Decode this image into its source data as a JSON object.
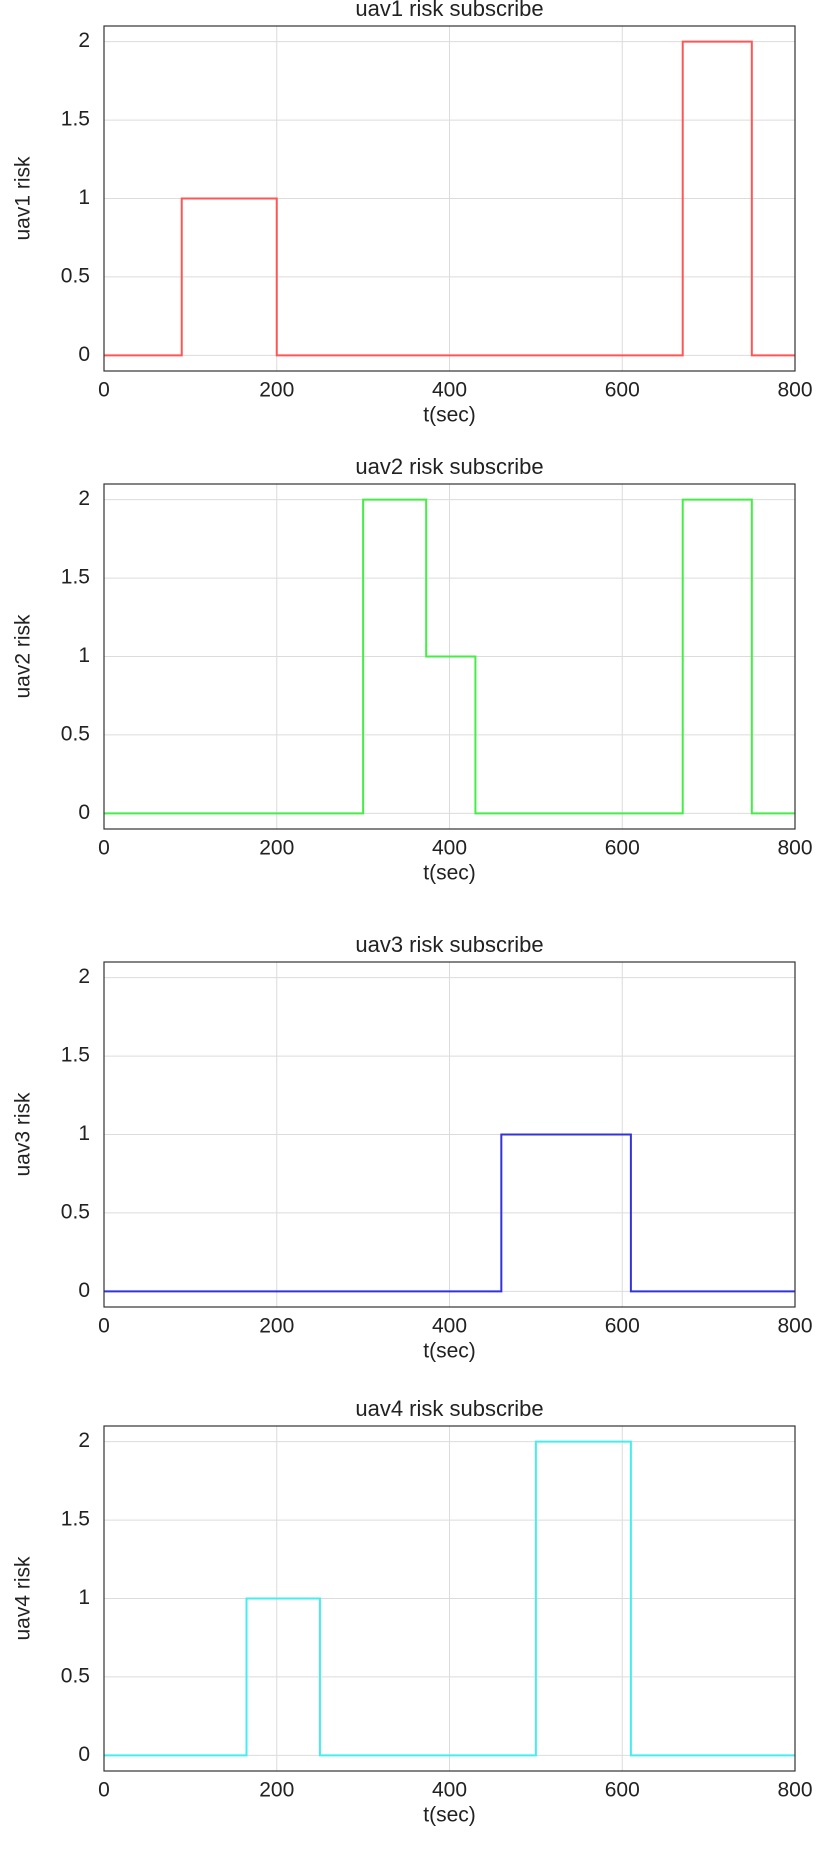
{
  "chart_data": [
    {
      "type": "line",
      "title": "uav1 risk subscribe",
      "xlabel": "t(sec)",
      "ylabel": "uav1 risk",
      "x": [
        0,
        90,
        90,
        200,
        200,
        670,
        670,
        750,
        750,
        800
      ],
      "values": [
        0,
        0,
        1,
        1,
        0,
        0,
        2,
        2,
        0,
        0
      ],
      "color": "#ff5555",
      "xlim": [
        0,
        800
      ],
      "xticks": [
        0,
        200,
        400,
        600,
        800
      ],
      "ylim": [
        -0.1,
        2.1
      ],
      "yticks": [
        0,
        0.5,
        1,
        1.5,
        2
      ],
      "grid": true
    },
    {
      "type": "line",
      "title": "uav2 risk subscribe",
      "xlabel": "t(sec)",
      "ylabel": "uav2 risk",
      "x": [
        0,
        300,
        300,
        373,
        373,
        430,
        430,
        670,
        670,
        750,
        750,
        800
      ],
      "values": [
        0,
        0,
        2,
        2,
        1,
        1,
        0,
        0,
        2,
        2,
        0,
        0
      ],
      "color": "#44ee44",
      "xlim": [
        0,
        800
      ],
      "xticks": [
        0,
        200,
        400,
        600,
        800
      ],
      "ylim": [
        -0.1,
        2.1
      ],
      "yticks": [
        0,
        0.5,
        1,
        1.5,
        2
      ],
      "grid": true
    },
    {
      "type": "line",
      "title": "uav3 risk subscribe",
      "xlabel": "t(sec)",
      "ylabel": "uav3 risk",
      "x": [
        0,
        460,
        460,
        610,
        610,
        800
      ],
      "values": [
        0,
        0,
        1,
        1,
        0,
        0
      ],
      "color": "#3333dd",
      "xlim": [
        0,
        800
      ],
      "xticks": [
        0,
        200,
        400,
        600,
        800
      ],
      "ylim": [
        -0.1,
        2.1
      ],
      "yticks": [
        0,
        0.5,
        1,
        1.5,
        2
      ],
      "grid": true
    },
    {
      "type": "line",
      "title": "uav4 risk subscribe",
      "xlabel": "t(sec)",
      "ylabel": "uav4 risk",
      "x": [
        0,
        165,
        165,
        250,
        250,
        500,
        500,
        610,
        610,
        800
      ],
      "values": [
        0,
        0,
        1,
        1,
        0,
        0,
        2,
        2,
        0,
        0
      ],
      "color": "#44eeee",
      "xlim": [
        0,
        800
      ],
      "xticks": [
        0,
        200,
        400,
        600,
        800
      ],
      "ylim": [
        -0.1,
        2.1
      ],
      "yticks": [
        0,
        0.5,
        1,
        1.5,
        2
      ],
      "grid": true
    }
  ]
}
